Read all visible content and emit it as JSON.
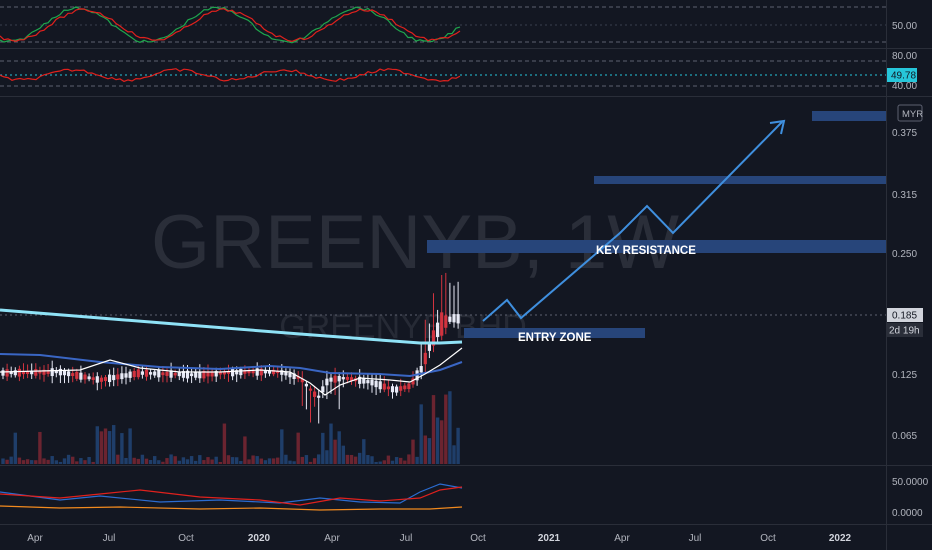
{
  "symbol": {
    "watermark": "GREENYB, 1W",
    "watermark_sub": "GREENYB BHD"
  },
  "colors": {
    "background": "#131722",
    "grid_dash": "#5d6170",
    "axis_text": "#b2b5be",
    "zone_fill": "#27457a",
    "arrow": "#3f8fde",
    "candle_up": "#e8eaf6",
    "candle_down": "#d2333f",
    "vol_up": "#1f3e6a",
    "vol_down": "#6b2430",
    "ma_cyan": "#8fe2f6",
    "ma_blue": "#3a66c4",
    "ma_white": "#ffffff",
    "rsi_red": "#e0211d",
    "stoch_green": "#1fa64d",
    "stoch_red": "#e0211d",
    "osc_blue": "#2b6cd1",
    "osc_red": "#e0211d",
    "osc_orange": "#f28a1e",
    "price_label": "#d1d4dc",
    "rsi_label": "#26c6da"
  },
  "panels": {
    "stoch": {
      "ticks": [
        "50.00"
      ]
    },
    "rsi": {
      "ticks": [
        "80.00",
        "40.00"
      ],
      "current_value": "49.78"
    },
    "price": {
      "currency": "MYR",
      "ticks": [
        "0.375",
        "0.315",
        "0.250",
        "0.125",
        "0.065"
      ],
      "current_price": "0.185",
      "countdown": "2d 19h"
    },
    "osc": {
      "ticks": [
        "50.0000",
        "0.0000"
      ]
    }
  },
  "annotations": {
    "key_resistance": "KEY RESISTANCE",
    "entry_zone": "ENTRY ZONE"
  },
  "time_axis": {
    "labels": [
      "Apr",
      "Jul",
      "Oct",
      "2020",
      "Apr",
      "Jul",
      "Oct",
      "2021",
      "Apr",
      "Jul",
      "Oct",
      "2022"
    ]
  },
  "chart_data": {
    "type": "candlestick",
    "title": "GREENYB, 1W",
    "ylim": [
      0.04,
      0.4
    ],
    "y_scale": "log",
    "x_range": [
      "2019-02",
      "2022-03"
    ],
    "current_price": 0.185,
    "moving_averages": [
      {
        "start": 0.19,
        "end": 0.16
      },
      {
        "start": 0.145,
        "end": 0.142
      },
      {
        "start": 0.128,
        "end": 0.148
      }
    ],
    "zones": [
      {
        "label": "ENTRY ZONE",
        "low": 0.163,
        "high": 0.17
      },
      {
        "label": "KEY RESISTANCE",
        "low": 0.252,
        "high": 0.262
      },
      {
        "label": "",
        "low": 0.325,
        "high": 0.333
      },
      {
        "label": "",
        "low": 0.385,
        "high": 0.395
      }
    ]
  }
}
